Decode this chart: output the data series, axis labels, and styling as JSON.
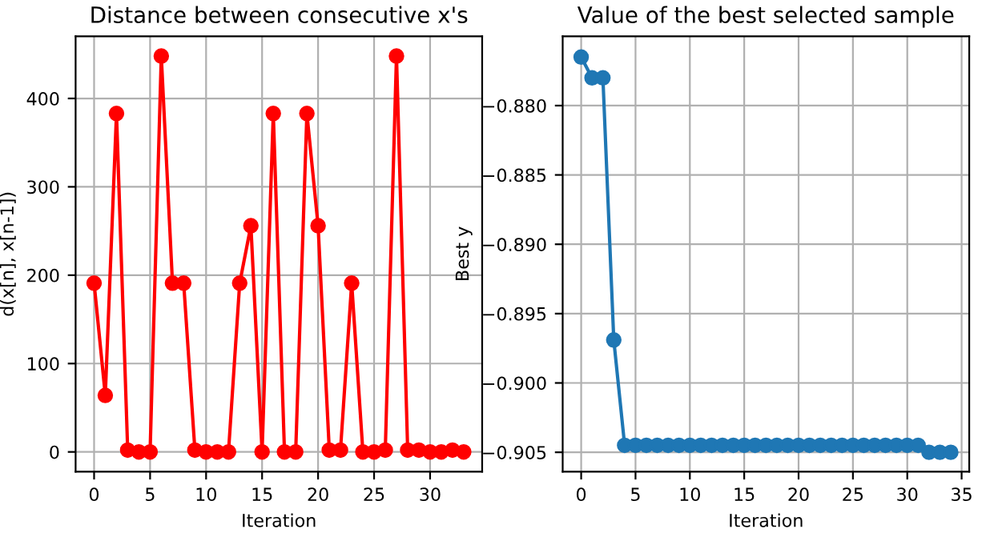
{
  "chart_data": [
    {
      "type": "line",
      "title": "Distance between consecutive x's",
      "xlabel": "Iteration",
      "ylabel": "d(x[n], x[n-1])",
      "marker": "circle",
      "grid": true,
      "x": [
        0,
        1,
        2,
        3,
        4,
        5,
        6,
        7,
        8,
        9,
        10,
        11,
        12,
        13,
        14,
        15,
        16,
        17,
        18,
        19,
        20,
        21,
        22,
        23,
        24,
        25,
        26,
        27,
        28,
        29,
        30,
        31,
        32,
        33
      ],
      "series": [
        {
          "color": "#ff0000",
          "values": [
            191,
            64,
            383,
            2,
            0,
            0,
            448,
            191,
            191,
            2,
            0,
            0,
            0,
            191,
            256,
            0,
            383,
            0,
            0,
            383,
            256,
            2,
            2,
            191,
            0,
            0,
            2,
            448,
            2,
            2,
            0,
            0,
            2,
            0
          ]
        }
      ],
      "xlim": [
        -1.65,
        34.65
      ],
      "ylim": [
        -22.4,
        470.4
      ],
      "xticks": [
        0,
        5,
        10,
        15,
        20,
        25,
        30
      ],
      "yticks": [
        0,
        100,
        200,
        300,
        400
      ]
    },
    {
      "type": "line",
      "title": "Value of the best selected sample",
      "xlabel": "Iteration",
      "ylabel": "Best y",
      "marker": "circle",
      "grid": true,
      "x": [
        0,
        1,
        2,
        3,
        4,
        5,
        6,
        7,
        8,
        9,
        10,
        11,
        12,
        13,
        14,
        15,
        16,
        17,
        18,
        19,
        20,
        21,
        22,
        23,
        24,
        25,
        26,
        27,
        28,
        29,
        30,
        31,
        32,
        33,
        34
      ],
      "series": [
        {
          "color": "#1f77b4",
          "values": [
            -0.8765,
            -0.878,
            -0.878,
            -0.8969,
            -0.9045,
            -0.9045,
            -0.9045,
            -0.9045,
            -0.9045,
            -0.9045,
            -0.9045,
            -0.9045,
            -0.9045,
            -0.9045,
            -0.9045,
            -0.9045,
            -0.9045,
            -0.9045,
            -0.9045,
            -0.9045,
            -0.9045,
            -0.9045,
            -0.9045,
            -0.9045,
            -0.9045,
            -0.9045,
            -0.9045,
            -0.9045,
            -0.9045,
            -0.9045,
            -0.9045,
            -0.9045,
            -0.905,
            -0.905,
            -0.905
          ]
        }
      ],
      "xlim": [
        -1.7,
        35.7
      ],
      "ylim": [
        -0.9064,
        -0.875
      ],
      "xticks": [
        0,
        5,
        10,
        15,
        20,
        25,
        30,
        35
      ],
      "yticks": [
        {
          "value": -0.88,
          "label": "−0.880"
        },
        {
          "value": -0.885,
          "label": "−0.885"
        },
        {
          "value": -0.89,
          "label": "−0.890"
        },
        {
          "value": -0.895,
          "label": "−0.895"
        },
        {
          "value": -0.9,
          "label": "−0.900"
        },
        {
          "value": -0.905,
          "label": "−0.905"
        }
      ]
    }
  ]
}
